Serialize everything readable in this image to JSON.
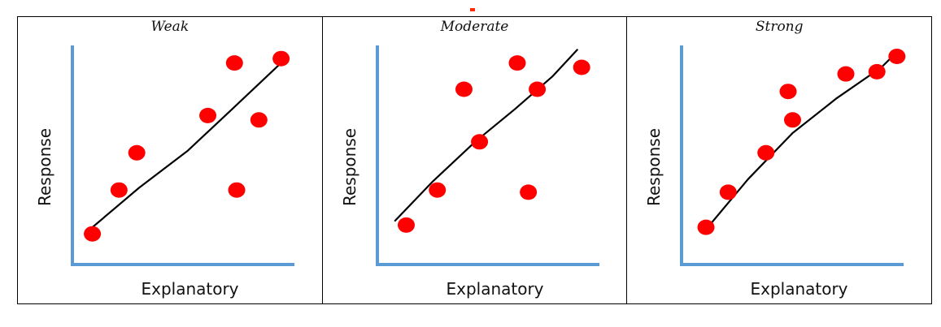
{
  "colors": {
    "axis": "#5b9bd5",
    "point": "#ff0000",
    "line": "#000000",
    "accent": "#ff2a00"
  },
  "chart_data": [
    {
      "type": "scatter",
      "title": "Weak",
      "xlabel": "Explanatory",
      "ylabel": "Response",
      "xlim": [
        0,
        10
      ],
      "ylim": [
        0,
        10
      ],
      "points": [
        [
          0.9,
          1.4
        ],
        [
          2.1,
          3.4
        ],
        [
          2.9,
          5.1
        ],
        [
          6.1,
          6.8
        ],
        [
          7.3,
          9.2
        ],
        [
          7.4,
          3.4
        ],
        [
          8.4,
          6.6
        ],
        [
          9.4,
          9.4
        ]
      ],
      "trend": [
        [
          0.9,
          1.7
        ],
        [
          3.0,
          3.5
        ],
        [
          5.2,
          5.2
        ],
        [
          7.2,
          7.1
        ],
        [
          9.4,
          9.2
        ]
      ]
    },
    {
      "type": "scatter",
      "title": "Moderate",
      "xlabel": "Explanatory",
      "ylabel": "Response",
      "xlim": [
        0,
        10
      ],
      "ylim": [
        0,
        10
      ],
      "points": [
        [
          1.3,
          1.8
        ],
        [
          2.7,
          3.4
        ],
        [
          3.9,
          8.0
        ],
        [
          4.6,
          5.6
        ],
        [
          6.3,
          9.2
        ],
        [
          6.8,
          3.3
        ],
        [
          7.2,
          8.0
        ],
        [
          9.2,
          9.0
        ]
      ],
      "trend": [
        [
          0.8,
          2.0
        ],
        [
          2.5,
          3.8
        ],
        [
          4.4,
          5.6
        ],
        [
          6.2,
          7.1
        ],
        [
          7.9,
          8.6
        ],
        [
          9.0,
          9.8
        ]
      ]
    },
    {
      "type": "scatter",
      "title": "Strong",
      "xlabel": "Explanatory",
      "ylabel": "Response",
      "xlim": [
        0,
        10
      ],
      "ylim": [
        0,
        10
      ],
      "points": [
        [
          1.1,
          1.7
        ],
        [
          2.1,
          3.3
        ],
        [
          3.8,
          5.1
        ],
        [
          4.8,
          7.9
        ],
        [
          5.0,
          6.6
        ],
        [
          7.4,
          8.7
        ],
        [
          8.8,
          8.8
        ],
        [
          9.7,
          9.5
        ]
      ],
      "trend": [
        [
          1.1,
          1.6
        ],
        [
          3.0,
          3.9
        ],
        [
          5.0,
          6.0
        ],
        [
          7.0,
          7.6
        ],
        [
          9.0,
          9.0
        ],
        [
          9.7,
          9.7
        ]
      ]
    }
  ]
}
